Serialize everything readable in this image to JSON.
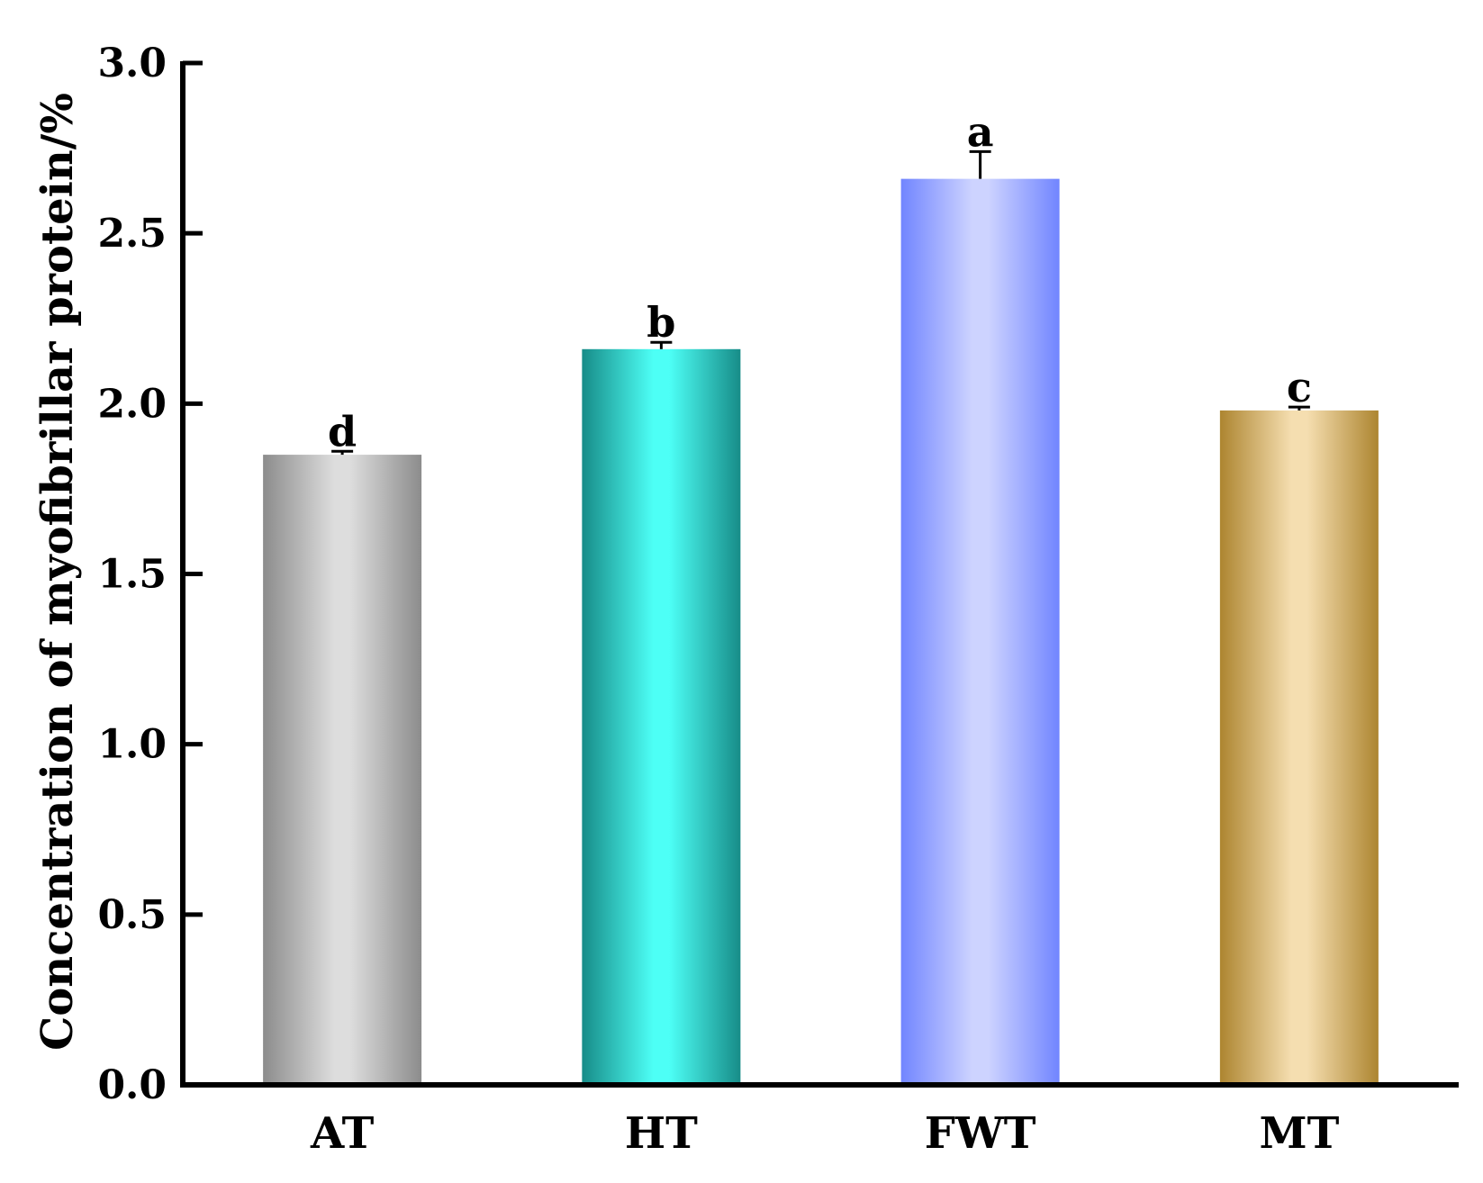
{
  "chart_data": {
    "type": "bar",
    "title": "",
    "xlabel": "",
    "ylabel": "Concentration of myofibrillar protein/%",
    "ylim": [
      0,
      3.0
    ],
    "yticks": [
      0.0,
      0.5,
      1.0,
      1.5,
      2.0,
      2.5,
      3.0
    ],
    "ytick_labels": [
      "0.0",
      "0.5",
      "1.0",
      "1.5",
      "2.0",
      "2.5",
      "3.0"
    ],
    "grid": false,
    "legend": "none",
    "categories": [
      "AT",
      "HT",
      "FWT",
      "MT"
    ],
    "values": [
      1.85,
      2.16,
      2.66,
      1.98
    ],
    "errors": [
      0.01,
      0.02,
      0.08,
      0.01
    ],
    "significance_letters": [
      "d",
      "b",
      "a",
      "c"
    ],
    "bar_colors": [
      {
        "edge": "#8c8c8c",
        "center": "#dddddd"
      },
      {
        "edge": "#178c88",
        "center": "#4dfff6"
      },
      {
        "edge": "#7185ff",
        "center": "#cdd3ff"
      },
      {
        "edge": "#ad8530",
        "center": "#f5deb0"
      }
    ]
  }
}
